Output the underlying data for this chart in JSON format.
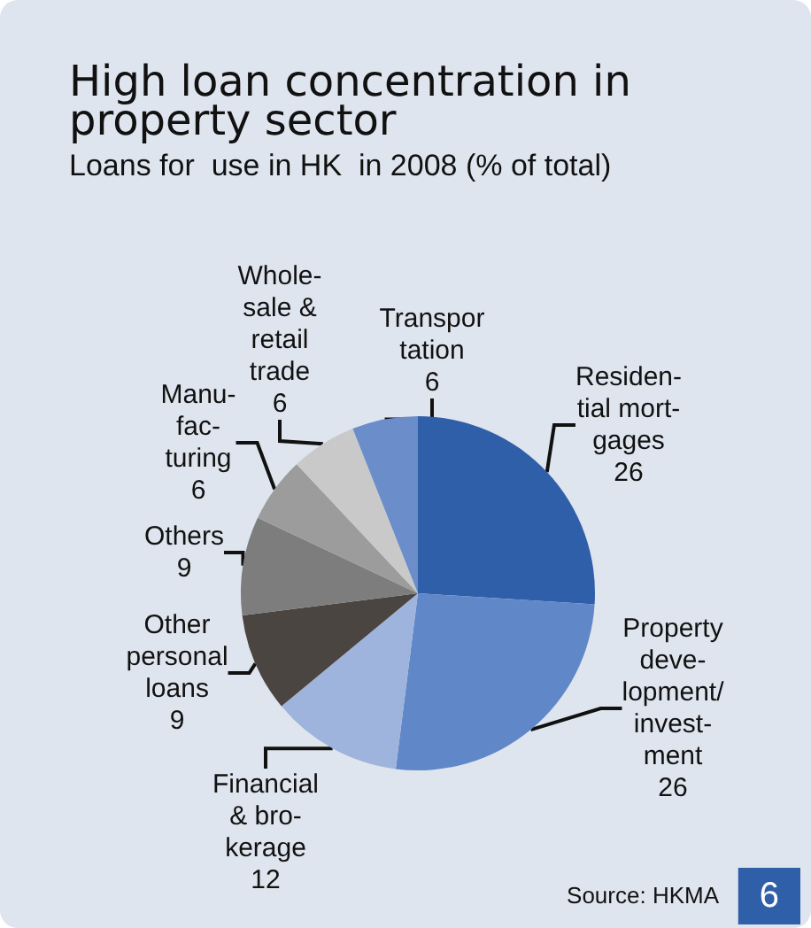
{
  "chart_data": {
    "type": "pie",
    "title": "High loan concentration in\nproperty sector",
    "subtitle": "Loans for  use in HK  in 2008 (% of total)",
    "categories": [
      "Residen-\ntial mort-\ngages",
      "Property\ndeve-\nlopment/\ninvest-\nment",
      "Financial\n& bro-\nkerage",
      "Other\npersonal\nloans",
      "Others",
      "Manu-\nfac-\nturing",
      "Whole-\nsale &\nretail\ntrade",
      "Transpor\ntation"
    ],
    "values": [
      26,
      26,
      12,
      9,
      9,
      6,
      6,
      6
    ],
    "colors": [
      "#2f5fa9",
      "#6088c8",
      "#9fb4dc",
      "#4a4541",
      "#7d7d7d",
      "#9c9c9c",
      "#c9c9c9",
      "#6b8dc9"
    ],
    "data_labels": true,
    "legend": false,
    "annotations": [
      "Source: HKMA",
      "6"
    ]
  }
}
